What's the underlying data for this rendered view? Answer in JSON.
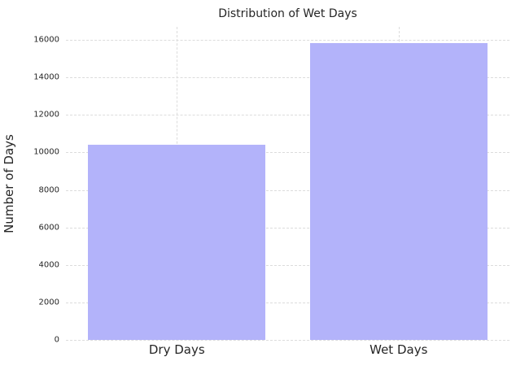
{
  "chart_data": {
    "type": "bar",
    "title": "Distribution of Wet Days",
    "xlabel": "",
    "ylabel": "Number of Days",
    "categories": [
      "Dry Days",
      "Wet Days"
    ],
    "values": [
      10400,
      15830
    ],
    "yticks": [
      0,
      2000,
      4000,
      6000,
      8000,
      10000,
      12000,
      14000,
      16000
    ],
    "ylim": [
      0,
      16700
    ],
    "bar_width_fraction": 0.8,
    "grid": "both-dashed",
    "legend": "none",
    "colors": {
      "bar_fill": "#b3b3fa",
      "grid_line": "#dcdcdc",
      "text": "#262626",
      "background": "#ffffff"
    }
  }
}
